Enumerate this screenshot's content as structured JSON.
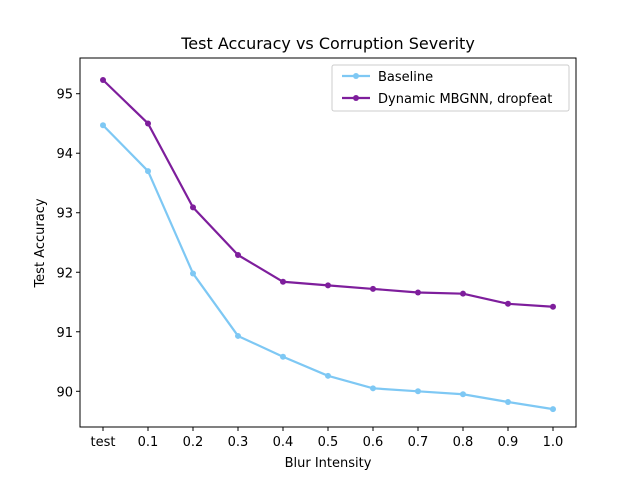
{
  "chart_data": {
    "type": "line",
    "title": "Test Accuracy vs Corruption Severity",
    "xlabel": "Blur Intensity",
    "ylabel": "Test Accuracy",
    "categories": [
      "test",
      "0.1",
      "0.2",
      "0.3",
      "0.4",
      "0.5",
      "0.6",
      "0.7",
      "0.8",
      "0.9",
      "1.0"
    ],
    "ylim": [
      89.4,
      95.6
    ],
    "yticks": [
      90,
      91,
      92,
      93,
      94,
      95
    ],
    "grid": false,
    "legend_position": "top-right",
    "series": [
      {
        "name": "Baseline",
        "color": "#7ec8f4",
        "values": [
          94.47,
          93.7,
          91.98,
          90.93,
          90.58,
          90.26,
          90.05,
          90.0,
          89.95,
          89.82,
          89.7
        ]
      },
      {
        "name": "Dynamic MBGNN, dropfeat",
        "color": "#7e1e9c",
        "values": [
          95.23,
          94.5,
          93.09,
          92.29,
          91.84,
          91.78,
          91.72,
          91.66,
          91.64,
          91.47,
          91.42
        ]
      }
    ]
  }
}
